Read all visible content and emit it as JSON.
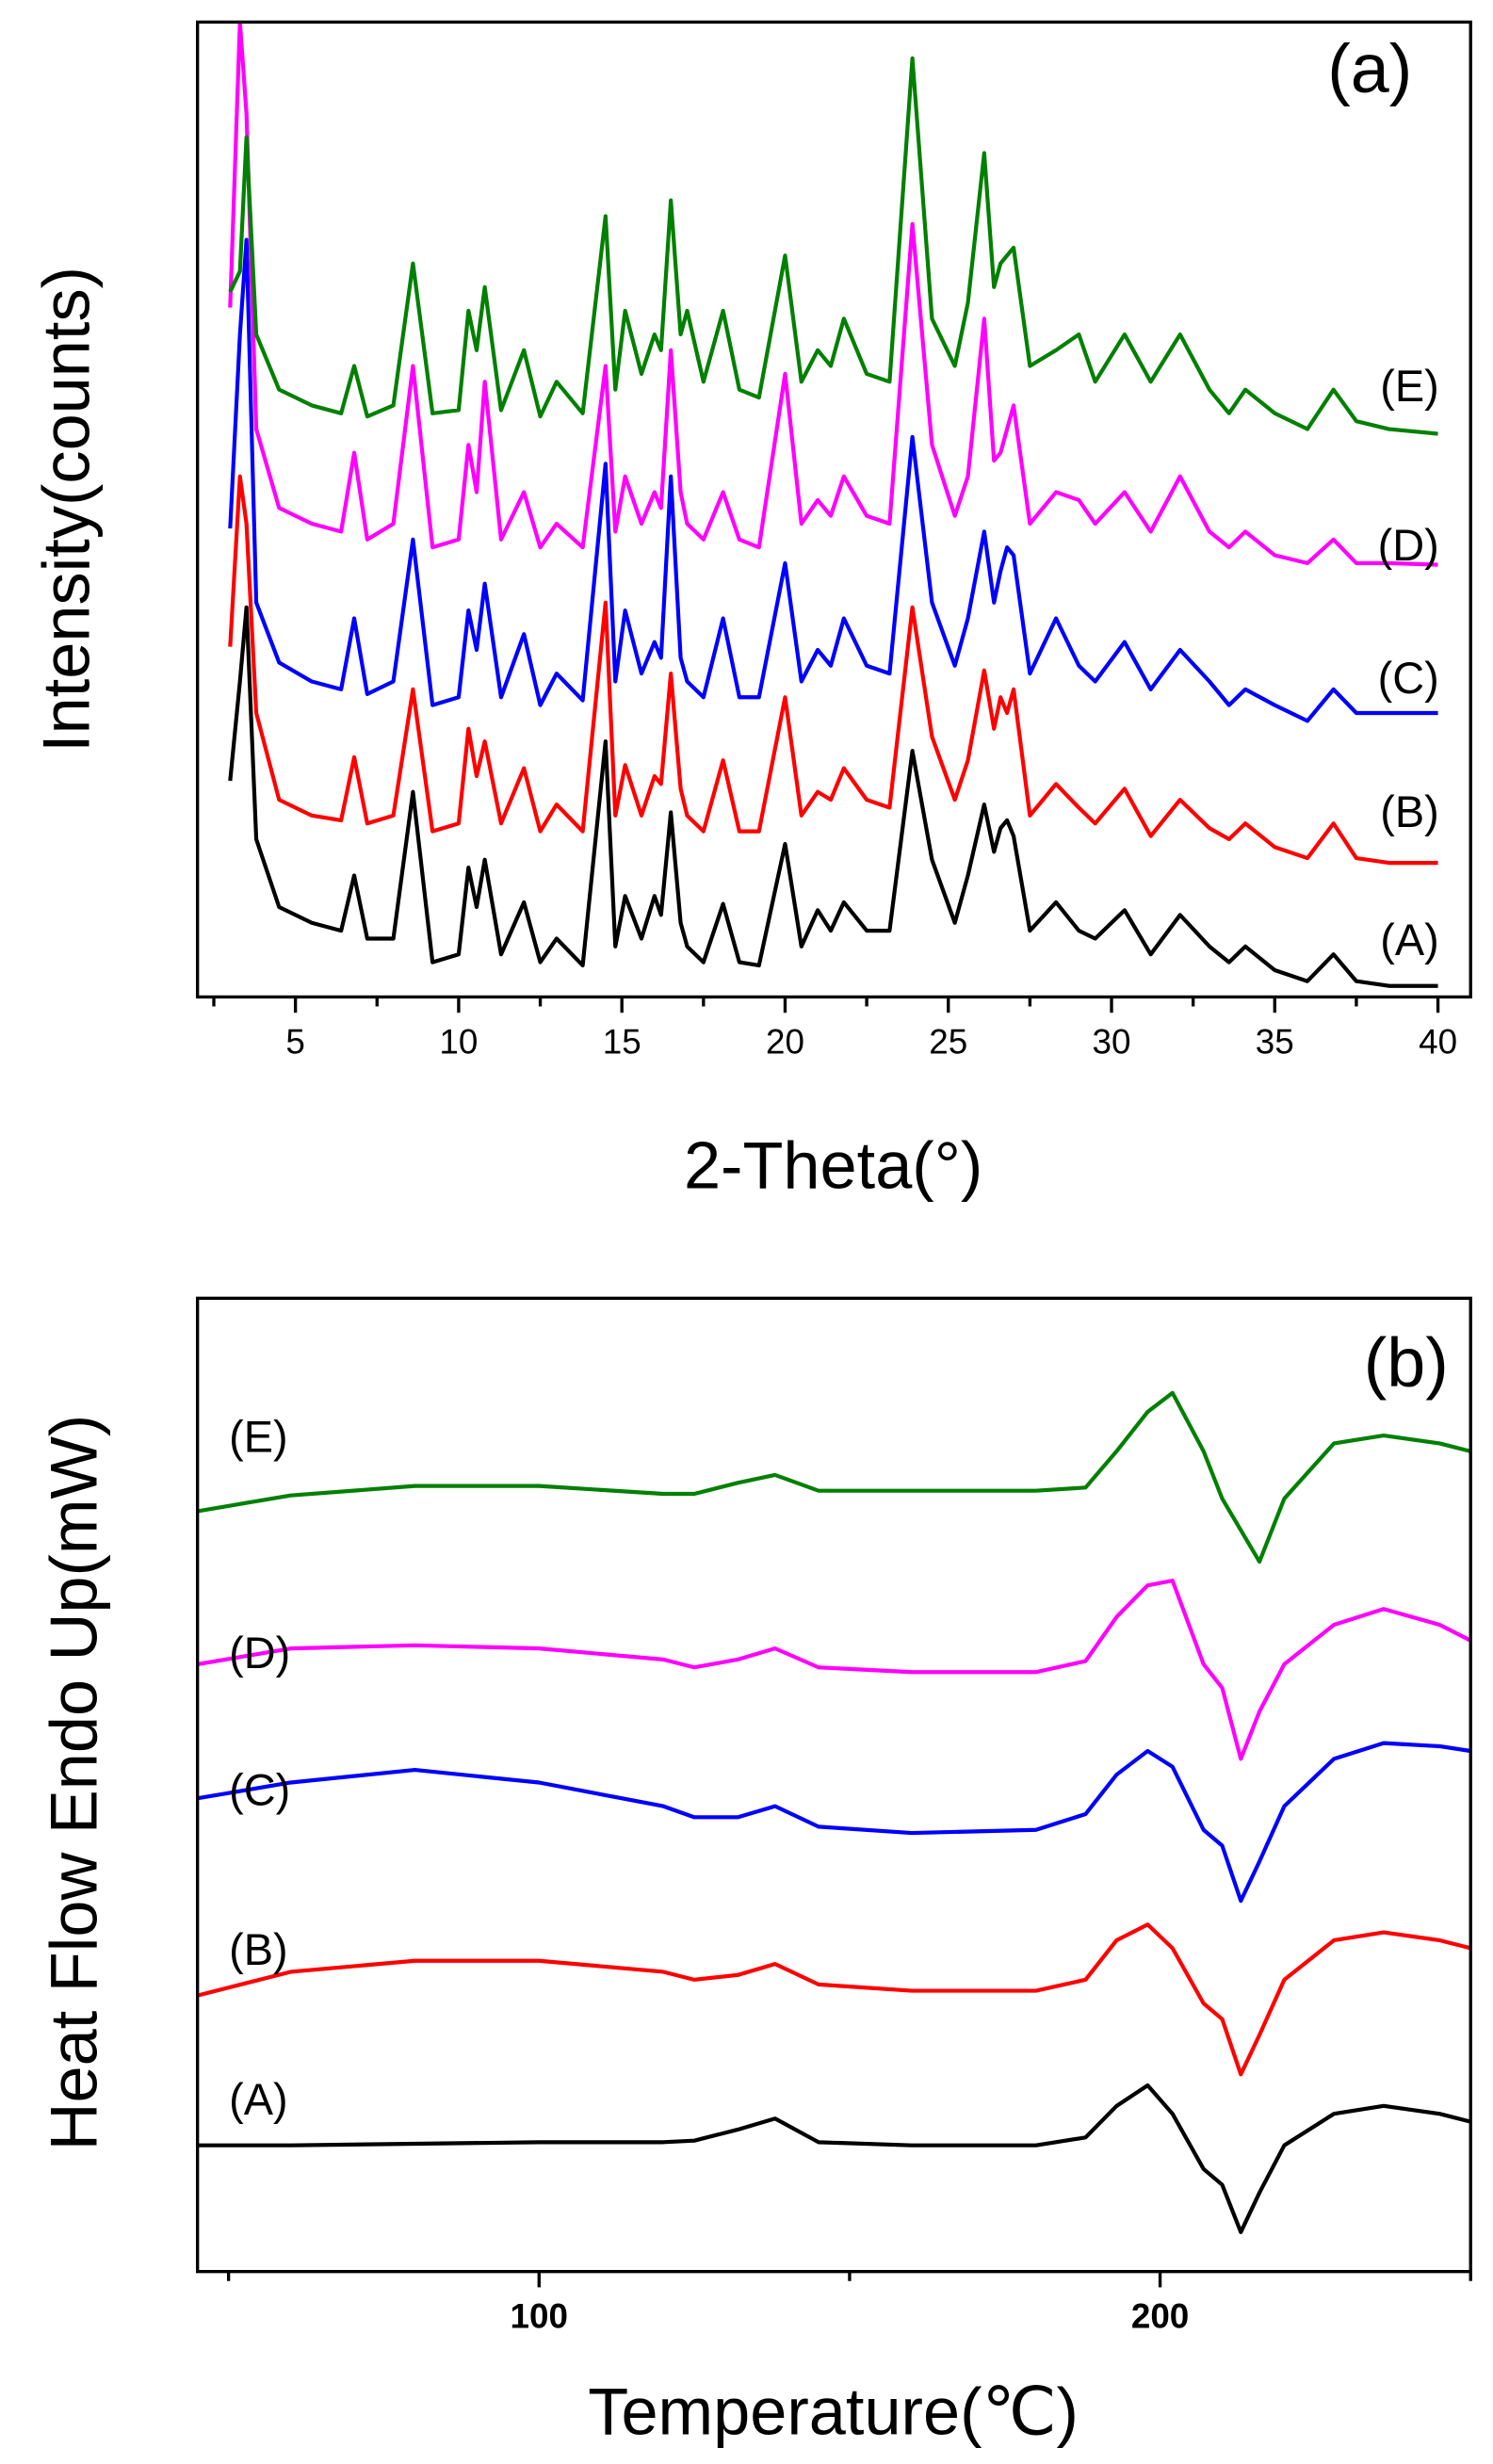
{
  "chart_data": [
    {
      "type": "line",
      "xlabel": "2-Theta(°)",
      "ylabel": "Intensity(counts)",
      "annotations": [
        "(a)",
        "(A)",
        "(B)",
        "(C)",
        "(D)",
        "(E)"
      ],
      "xlim": [
        2,
        41
      ],
      "ylim": [
        0,
        618
      ],
      "xticks": [
        5,
        10,
        15,
        20,
        25,
        30,
        35,
        40
      ],
      "xminorticks": [
        2.5,
        7.5,
        12.5,
        17.5,
        22.5,
        27.5,
        32.5,
        37.5
      ],
      "x": [
        3.0,
        3.3,
        3.5,
        3.8,
        4.5,
        5.5,
        6.4,
        6.8,
        7.2,
        8.0,
        8.6,
        9.2,
        10.0,
        10.3,
        10.55,
        10.8,
        11.3,
        12.0,
        12.5,
        13.0,
        13.8,
        14.5,
        14.8,
        15.1,
        15.6,
        16.0,
        16.2,
        16.5,
        16.8,
        17.0,
        17.5,
        18.1,
        18.6,
        19.2,
        20.0,
        20.5,
        21.0,
        21.4,
        21.8,
        22.5,
        23.2,
        23.9,
        24.5,
        25.2,
        25.6,
        26.1,
        26.4,
        26.6,
        26.8,
        27.0,
        27.5,
        28.3,
        29.0,
        29.5,
        30.4,
        31.2,
        32.1,
        33.0,
        33.6,
        34.1,
        35.0,
        36.0,
        36.8,
        37.5,
        38.5,
        40.0
      ],
      "series": [
        {
          "color": "#000000",
          "values": [
            137,
            200,
            247,
            100,
            57,
            47,
            42,
            77,
            37,
            37,
            130,
            22,
            27,
            82,
            57,
            87,
            27,
            60,
            22,
            37,
            20,
            162,
            32,
            64,
            37,
            64,
            52,
            117,
            47,
            32,
            22,
            59,
            22,
            20,
            97,
            32,
            55,
            42,
            60,
            42,
            42,
            156,
            87,
            47,
            77,
            122,
            92,
            107,
            112,
            102,
            42,
            60,
            42,
            37,
            55,
            27,
            52,
            32,
            22,
            32,
            17,
            10,
            27,
            10,
            7,
            7
          ]
        },
        {
          "color": "#ff0000",
          "values": [
            222,
            330,
            300,
            180,
            125,
            115,
            112,
            152,
            110,
            115,
            195,
            105,
            110,
            170,
            140,
            162,
            110,
            145,
            105,
            122,
            105,
            250,
            115,
            147,
            115,
            140,
            135,
            205,
            132,
            115,
            105,
            150,
            105,
            105,
            190,
            115,
            130,
            125,
            145,
            125,
            120,
            247,
            165,
            125,
            150,
            207,
            170,
            190,
            180,
            195,
            115,
            135,
            120,
            110,
            132,
            102,
            125,
            107,
            100,
            110,
            95,
            88,
            110,
            88,
            85,
            85
          ]
        },
        {
          "color": "#0000ff",
          "values": [
            297,
            420,
            480,
            250,
            212,
            200,
            195,
            240,
            192,
            200,
            290,
            185,
            190,
            245,
            220,
            262,
            190,
            230,
            185,
            205,
            188,
            338,
            200,
            245,
            205,
            225,
            215,
            330,
            215,
            200,
            190,
            240,
            190,
            190,
            275,
            200,
            220,
            210,
            240,
            210,
            205,
            355,
            250,
            210,
            240,
            295,
            250,
            270,
            285,
            280,
            205,
            240,
            210,
            200,
            225,
            195,
            220,
            200,
            185,
            195,
            185,
            175,
            195,
            180,
            180,
            180
          ]
        },
        {
          "color": "#ff00ff",
          "values": [
            437,
            618,
            560,
            360,
            310,
            300,
            295,
            345,
            290,
            300,
            400,
            285,
            290,
            350,
            320,
            390,
            290,
            320,
            285,
            300,
            285,
            400,
            295,
            330,
            300,
            320,
            310,
            410,
            320,
            300,
            290,
            320,
            290,
            285,
            395,
            300,
            315,
            305,
            330,
            305,
            300,
            490,
            350,
            305,
            330,
            430,
            340,
            345,
            360,
            375,
            300,
            320,
            315,
            300,
            320,
            295,
            330,
            295,
            285,
            295,
            280,
            275,
            290,
            275,
            275,
            274
          ]
        },
        {
          "color": "#008000",
          "values": [
            447,
            460,
            545,
            420,
            385,
            375,
            370,
            400,
            368,
            375,
            465,
            370,
            372,
            435,
            410,
            450,
            372,
            410,
            368,
            390,
            370,
            495,
            385,
            435,
            395,
            420,
            410,
            505,
            420,
            435,
            390,
            435,
            385,
            380,
            470,
            390,
            410,
            400,
            430,
            395,
            390,
            595,
            430,
            400,
            440,
            535,
            450,
            465,
            470,
            475,
            400,
            410,
            420,
            390,
            420,
            390,
            420,
            385,
            370,
            385,
            370,
            360,
            385,
            365,
            360,
            357
          ]
        }
      ]
    },
    {
      "type": "line",
      "xlabel": "Temperature(℃)",
      "ylabel": "Heat Flow Endo Up(mW)",
      "annotations": [
        "(b)",
        "(A)",
        "(B)",
        "(C)",
        "(D)",
        "(E)"
      ],
      "xlim": [
        45,
        250
      ],
      "ylim": [
        0,
        617
      ],
      "xticks": [
        100,
        200
      ],
      "xminorticks": [
        50,
        150,
        250
      ],
      "x": [
        45,
        60,
        80,
        100,
        120,
        125,
        132,
        138,
        145,
        160,
        180,
        188,
        193,
        198,
        202,
        207,
        210,
        213,
        216,
        220,
        228,
        236,
        245,
        250
      ],
      "series": [
        {
          "color": "#000000",
          "values": [
            80,
            80,
            81,
            82,
            82,
            83,
            90,
            97,
            82,
            80,
            80,
            85,
            105,
            118,
            100,
            65,
            55,
            25,
            50,
            80,
            100,
            105,
            100,
            95
          ]
        },
        {
          "color": "#ff0000",
          "values": [
            175,
            190,
            197,
            197,
            190,
            185,
            188,
            195,
            182,
            178,
            178,
            185,
            210,
            220,
            205,
            170,
            160,
            125,
            150,
            185,
            210,
            215,
            210,
            205
          ]
        },
        {
          "color": "#0000ff",
          "values": [
            300,
            310,
            318,
            310,
            295,
            288,
            288,
            295,
            282,
            278,
            280,
            290,
            315,
            330,
            320,
            280,
            270,
            235,
            260,
            295,
            325,
            335,
            333,
            330
          ]
        },
        {
          "color": "#ff00ff",
          "values": [
            385,
            395,
            397,
            395,
            388,
            383,
            388,
            395,
            383,
            380,
            380,
            387,
            415,
            435,
            438,
            385,
            370,
            325,
            355,
            385,
            410,
            420,
            410,
            400
          ]
        },
        {
          "color": "#008000",
          "values": [
            482,
            492,
            498,
            498,
            493,
            493,
            500,
            505,
            495,
            495,
            495,
            497,
            520,
            545,
            557,
            520,
            490,
            470,
            450,
            490,
            525,
            530,
            525,
            520
          ]
        }
      ]
    }
  ]
}
